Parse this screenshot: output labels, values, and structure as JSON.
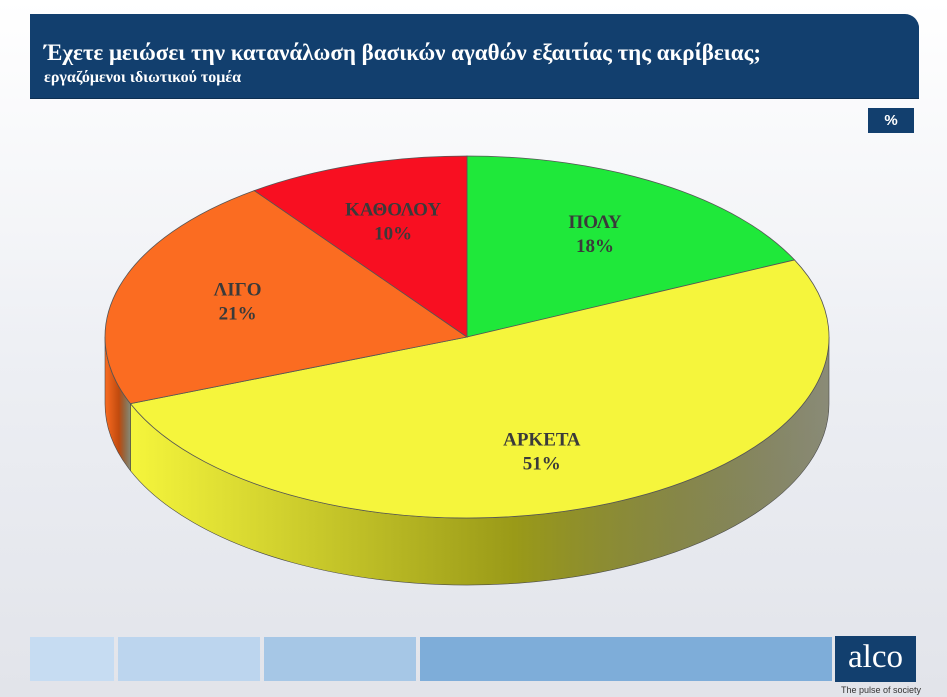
{
  "header": {
    "title": "Έχετε μειώσει την κατανάλωση βασικών αγαθών εξαιτίας της ακρίβειας;",
    "subtitle": "εργαζόμενοι ιδιωτικού τομέα",
    "unit_badge": "%"
  },
  "chart_data": {
    "type": "pie",
    "unit": "%",
    "slices": [
      {
        "label": "ΠΟΛΥ",
        "value": 18,
        "value_label": "18%",
        "color": "#1fe83a",
        "side_color": "#139126"
      },
      {
        "label": "ΑΡΚΕΤΑ",
        "value": 51,
        "value_label": "51%",
        "color": "#f5f53c",
        "side_color": "#9a9a18"
      },
      {
        "label": "ΛΙΓΟ",
        "value": 21,
        "value_label": "21%",
        "color": "#fb6c21",
        "side_color": "#c04a0e"
      },
      {
        "label": "ΚΑΘΟΛΟΥ",
        "value": 10,
        "value_label": "10%",
        "color": "#f80f21",
        "side_color": "#a00812"
      }
    ]
  },
  "footer": {
    "bar_colors": [
      "#c6dcf2",
      "#bcd5ee",
      "#a6c7e6",
      "#7eadd9"
    ],
    "logo_text": "alco",
    "tagline": "The pulse of society"
  }
}
